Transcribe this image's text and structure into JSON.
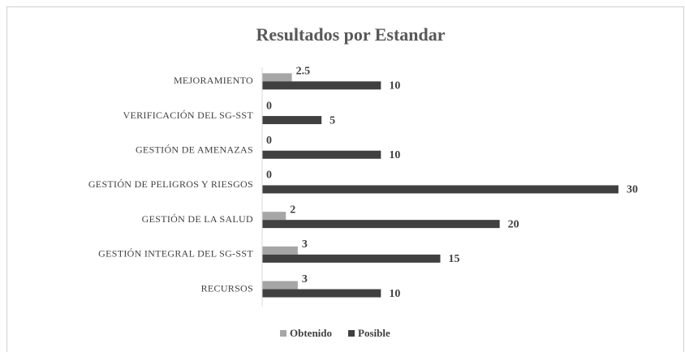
{
  "chart_data": {
    "type": "hbar",
    "title": "Resultados por Estandar",
    "categories": [
      "MEJORAMIENTO",
      "VERIFICACIÓN DEL SG-SST",
      "GESTIÓN DE AMENAZAS",
      "GESTIÓN DE PELIGROS Y RIESGOS",
      "GESTIÓN DE LA SALUD",
      "GESTIÓN INTEGRAL DEL SG-SST",
      "RECURSOS"
    ],
    "series": [
      {
        "name": "Obtenido",
        "color": "#a6a6a6",
        "values": [
          2.5,
          0,
          0,
          0,
          2,
          3,
          3
        ]
      },
      {
        "name": "Posible",
        "color": "#404040",
        "values": [
          10,
          5,
          10,
          30,
          20,
          15,
          10
        ]
      }
    ],
    "xlim": [
      0,
      30
    ],
    "grid": false,
    "legend": "bottom"
  }
}
